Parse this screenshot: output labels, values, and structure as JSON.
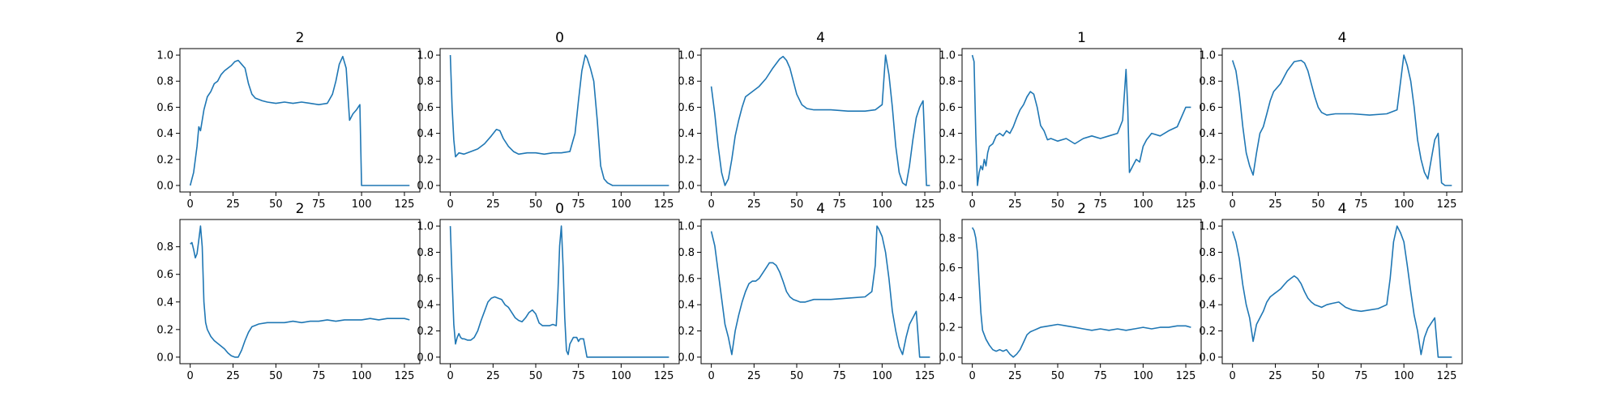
{
  "line_color": "#1f77b4",
  "chart_data": [
    {
      "type": "line",
      "title": "2",
      "xlim": [
        -6,
        134
      ],
      "ylim": [
        -0.05,
        1.05
      ],
      "xticks": [
        0,
        25,
        50,
        75,
        100,
        125
      ],
      "yticks": [
        0.0,
        0.2,
        0.4,
        0.6,
        0.8,
        1.0
      ],
      "x": [
        0,
        2,
        4,
        5,
        6,
        7,
        8,
        10,
        12,
        14,
        16,
        18,
        20,
        22,
        24,
        26,
        28,
        30,
        32,
        34,
        36,
        38,
        40,
        42,
        45,
        50,
        55,
        60,
        65,
        70,
        75,
        80,
        83,
        85,
        87,
        89,
        91,
        93,
        95,
        97,
        98,
        99,
        100,
        110,
        128
      ],
      "y": [
        0.0,
        0.1,
        0.3,
        0.45,
        0.42,
        0.5,
        0.58,
        0.68,
        0.72,
        0.78,
        0.8,
        0.85,
        0.88,
        0.9,
        0.92,
        0.95,
        0.96,
        0.93,
        0.9,
        0.78,
        0.7,
        0.67,
        0.66,
        0.65,
        0.64,
        0.63,
        0.64,
        0.63,
        0.64,
        0.63,
        0.62,
        0.63,
        0.7,
        0.8,
        0.93,
        0.99,
        0.9,
        0.5,
        0.55,
        0.58,
        0.6,
        0.62,
        0.0,
        0.0,
        0.0
      ]
    },
    {
      "type": "line",
      "title": "0",
      "xlim": [
        -6,
        134
      ],
      "ylim": [
        -0.05,
        1.05
      ],
      "xticks": [
        0,
        25,
        50,
        75,
        100,
        125
      ],
      "yticks": [
        0.0,
        0.2,
        0.4,
        0.6,
        0.8,
        1.0
      ],
      "x": [
        0,
        1,
        2,
        3,
        5,
        8,
        12,
        16,
        20,
        24,
        27,
        29,
        31,
        34,
        37,
        40,
        45,
        50,
        55,
        60,
        65,
        70,
        73,
        75,
        77,
        79,
        80,
        82,
        84,
        86,
        88,
        90,
        92,
        95,
        100,
        128
      ],
      "y": [
        1.0,
        0.6,
        0.35,
        0.22,
        0.25,
        0.24,
        0.26,
        0.28,
        0.32,
        0.38,
        0.43,
        0.42,
        0.36,
        0.3,
        0.26,
        0.24,
        0.25,
        0.25,
        0.24,
        0.25,
        0.25,
        0.26,
        0.4,
        0.65,
        0.88,
        1.0,
        0.98,
        0.9,
        0.8,
        0.5,
        0.15,
        0.05,
        0.02,
        0.0,
        0.0,
        0.0
      ]
    },
    {
      "type": "line",
      "title": "4",
      "xlim": [
        -6,
        134
      ],
      "ylim": [
        -0.05,
        1.05
      ],
      "xticks": [
        0,
        25,
        50,
        75,
        100,
        125
      ],
      "yticks": [
        0.0,
        0.2,
        0.4,
        0.6,
        0.8,
        1.0
      ],
      "x": [
        0,
        2,
        4,
        6,
        8,
        10,
        12,
        14,
        16,
        18,
        20,
        24,
        28,
        32,
        36,
        40,
        42,
        44,
        46,
        48,
        50,
        53,
        56,
        60,
        70,
        80,
        90,
        96,
        100,
        102,
        104,
        106,
        108,
        110,
        112,
        114,
        116,
        118,
        120,
        122,
        124,
        126,
        128
      ],
      "y": [
        0.76,
        0.55,
        0.3,
        0.1,
        0.0,
        0.05,
        0.2,
        0.38,
        0.5,
        0.6,
        0.68,
        0.72,
        0.76,
        0.82,
        0.9,
        0.97,
        0.99,
        0.96,
        0.9,
        0.8,
        0.7,
        0.62,
        0.59,
        0.58,
        0.58,
        0.57,
        0.57,
        0.58,
        0.62,
        1.0,
        0.85,
        0.6,
        0.3,
        0.1,
        0.02,
        0.0,
        0.15,
        0.35,
        0.52,
        0.6,
        0.65,
        0.0,
        0.0
      ]
    },
    {
      "type": "line",
      "title": "1",
      "xlim": [
        -6,
        134
      ],
      "ylim": [
        -0.05,
        1.05
      ],
      "xticks": [
        0,
        25,
        50,
        75,
        100,
        125
      ],
      "yticks": [
        0.0,
        0.2,
        0.4,
        0.6,
        0.8,
        1.0
      ],
      "x": [
        0,
        1,
        2,
        3,
        4,
        5,
        6,
        7,
        8,
        9,
        10,
        12,
        14,
        16,
        18,
        20,
        22,
        24,
        26,
        28,
        30,
        32,
        34,
        36,
        38,
        40,
        42,
        44,
        46,
        50,
        55,
        60,
        65,
        70,
        75,
        80,
        85,
        88,
        90,
        91,
        92,
        94,
        96,
        98,
        100,
        102,
        105,
        110,
        115,
        120,
        125,
        128
      ],
      "y": [
        1.0,
        0.95,
        0.4,
        0.0,
        0.1,
        0.15,
        0.12,
        0.2,
        0.15,
        0.25,
        0.3,
        0.32,
        0.38,
        0.4,
        0.38,
        0.42,
        0.4,
        0.45,
        0.52,
        0.58,
        0.62,
        0.68,
        0.72,
        0.7,
        0.6,
        0.46,
        0.42,
        0.35,
        0.36,
        0.34,
        0.36,
        0.32,
        0.36,
        0.38,
        0.36,
        0.38,
        0.4,
        0.5,
        0.89,
        0.6,
        0.1,
        0.15,
        0.2,
        0.18,
        0.3,
        0.35,
        0.4,
        0.38,
        0.42,
        0.45,
        0.6,
        0.6
      ]
    },
    {
      "type": "line",
      "title": "4",
      "xlim": [
        -6,
        134
      ],
      "ylim": [
        -0.05,
        1.05
      ],
      "xticks": [
        0,
        25,
        50,
        75,
        100,
        125
      ],
      "yticks": [
        0.0,
        0.2,
        0.4,
        0.6,
        0.8,
        1.0
      ],
      "x": [
        0,
        2,
        4,
        6,
        8,
        10,
        12,
        14,
        16,
        18,
        20,
        22,
        24,
        28,
        32,
        36,
        40,
        42,
        44,
        46,
        48,
        50,
        52,
        55,
        60,
        70,
        80,
        90,
        96,
        100,
        102,
        104,
        106,
        108,
        110,
        112,
        114,
        116,
        118,
        120,
        122,
        124,
        126,
        128
      ],
      "y": [
        0.96,
        0.88,
        0.7,
        0.45,
        0.25,
        0.15,
        0.08,
        0.25,
        0.4,
        0.45,
        0.55,
        0.65,
        0.72,
        0.78,
        0.88,
        0.95,
        0.96,
        0.94,
        0.88,
        0.78,
        0.68,
        0.6,
        0.56,
        0.54,
        0.55,
        0.55,
        0.54,
        0.55,
        0.58,
        1.0,
        0.92,
        0.8,
        0.6,
        0.35,
        0.2,
        0.1,
        0.05,
        0.2,
        0.35,
        0.4,
        0.02,
        0.0,
        0.0,
        0.0
      ]
    },
    {
      "type": "line",
      "title": "2",
      "xlim": [
        -6,
        134
      ],
      "ylim": [
        -0.0475,
        0.9975
      ],
      "xticks": [
        0,
        25,
        50,
        75,
        100,
        125
      ],
      "yticks": [
        0.0,
        0.2,
        0.4,
        0.6,
        0.8
      ],
      "x": [
        0,
        1,
        2,
        3,
        4,
        5,
        6,
        7,
        8,
        9,
        10,
        12,
        14,
        16,
        18,
        20,
        22,
        24,
        26,
        28,
        30,
        32,
        34,
        36,
        38,
        40,
        45,
        50,
        55,
        60,
        65,
        70,
        75,
        80,
        85,
        90,
        95,
        100,
        105,
        110,
        115,
        120,
        125,
        128
      ],
      "y": [
        0.82,
        0.83,
        0.78,
        0.72,
        0.75,
        0.85,
        0.95,
        0.8,
        0.4,
        0.25,
        0.2,
        0.15,
        0.12,
        0.1,
        0.08,
        0.06,
        0.03,
        0.01,
        0.0,
        0.0,
        0.05,
        0.12,
        0.18,
        0.22,
        0.23,
        0.24,
        0.25,
        0.25,
        0.25,
        0.26,
        0.25,
        0.26,
        0.26,
        0.27,
        0.26,
        0.27,
        0.27,
        0.27,
        0.28,
        0.27,
        0.28,
        0.28,
        0.28,
        0.27
      ]
    },
    {
      "type": "line",
      "title": "0",
      "xlim": [
        -6,
        134
      ],
      "ylim": [
        -0.05,
        1.05
      ],
      "xticks": [
        0,
        25,
        50,
        75,
        100,
        125
      ],
      "yticks": [
        0.0,
        0.2,
        0.4,
        0.6,
        0.8,
        1.0
      ],
      "x": [
        0,
        1,
        2,
        3,
        4,
        5,
        6,
        7,
        8,
        10,
        12,
        14,
        16,
        18,
        20,
        22,
        24,
        26,
        28,
        30,
        32,
        34,
        36,
        38,
        40,
        42,
        44,
        46,
        48,
        50,
        52,
        54,
        56,
        58,
        60,
        62,
        63,
        64,
        65,
        66,
        67,
        68,
        69,
        70,
        72,
        74,
        75,
        76,
        78,
        80,
        100,
        128
      ],
      "y": [
        1.0,
        0.6,
        0.25,
        0.1,
        0.15,
        0.18,
        0.15,
        0.14,
        0.14,
        0.13,
        0.13,
        0.15,
        0.2,
        0.28,
        0.35,
        0.42,
        0.45,
        0.46,
        0.45,
        0.44,
        0.4,
        0.38,
        0.34,
        0.3,
        0.28,
        0.27,
        0.3,
        0.34,
        0.36,
        0.33,
        0.26,
        0.24,
        0.24,
        0.24,
        0.25,
        0.24,
        0.5,
        0.85,
        1.0,
        0.7,
        0.3,
        0.05,
        0.02,
        0.1,
        0.15,
        0.15,
        0.12,
        0.14,
        0.14,
        0.0,
        0.0,
        0.0
      ]
    },
    {
      "type": "line",
      "title": "4",
      "xlim": [
        -6,
        134
      ],
      "ylim": [
        -0.05,
        1.05
      ],
      "xticks": [
        0,
        25,
        50,
        75,
        100,
        125
      ],
      "yticks": [
        0.0,
        0.2,
        0.4,
        0.6,
        0.8,
        1.0
      ],
      "x": [
        0,
        2,
        4,
        6,
        8,
        10,
        12,
        14,
        16,
        18,
        20,
        22,
        24,
        26,
        28,
        30,
        32,
        34,
        36,
        38,
        40,
        42,
        44,
        46,
        48,
        50,
        52,
        55,
        60,
        70,
        80,
        90,
        94,
        96,
        97,
        98,
        100,
        102,
        104,
        106,
        108,
        110,
        112,
        114,
        116,
        118,
        120,
        122,
        124,
        126,
        128
      ],
      "y": [
        0.96,
        0.85,
        0.65,
        0.45,
        0.25,
        0.15,
        0.02,
        0.2,
        0.32,
        0.42,
        0.5,
        0.56,
        0.58,
        0.58,
        0.6,
        0.64,
        0.68,
        0.72,
        0.72,
        0.7,
        0.65,
        0.58,
        0.5,
        0.46,
        0.44,
        0.43,
        0.42,
        0.42,
        0.44,
        0.44,
        0.45,
        0.46,
        0.5,
        0.7,
        1.0,
        0.98,
        0.92,
        0.8,
        0.6,
        0.35,
        0.2,
        0.08,
        0.02,
        0.15,
        0.25,
        0.3,
        0.35,
        0.0,
        0.0,
        0.0,
        0.0
      ]
    },
    {
      "type": "line",
      "title": "2",
      "xlim": [
        -6,
        134
      ],
      "ylim": [
        -0.044,
        0.924
      ],
      "xticks": [
        0,
        25,
        50,
        75,
        100,
        125
      ],
      "yticks": [
        0.0,
        0.2,
        0.4,
        0.6,
        0.8
      ],
      "x": [
        0,
        1,
        2,
        3,
        4,
        5,
        6,
        7,
        8,
        10,
        12,
        14,
        16,
        18,
        20,
        22,
        24,
        26,
        28,
        30,
        32,
        34,
        36,
        38,
        40,
        45,
        50,
        55,
        60,
        65,
        70,
        75,
        80,
        85,
        90,
        95,
        100,
        105,
        110,
        115,
        120,
        125,
        128
      ],
      "y": [
        0.87,
        0.85,
        0.8,
        0.7,
        0.5,
        0.3,
        0.18,
        0.15,
        0.12,
        0.08,
        0.05,
        0.04,
        0.05,
        0.04,
        0.05,
        0.02,
        0.0,
        0.02,
        0.05,
        0.1,
        0.15,
        0.17,
        0.18,
        0.19,
        0.2,
        0.21,
        0.22,
        0.21,
        0.2,
        0.19,
        0.18,
        0.19,
        0.18,
        0.19,
        0.18,
        0.19,
        0.2,
        0.19,
        0.2,
        0.2,
        0.21,
        0.21,
        0.2
      ]
    },
    {
      "type": "line",
      "title": "4",
      "xlim": [
        -6,
        134
      ],
      "ylim": [
        -0.05,
        1.05
      ],
      "xticks": [
        0,
        25,
        50,
        75,
        100,
        125
      ],
      "yticks": [
        0.0,
        0.2,
        0.4,
        0.6,
        0.8,
        1.0
      ],
      "x": [
        0,
        2,
        4,
        6,
        8,
        10,
        12,
        14,
        16,
        18,
        20,
        22,
        24,
        26,
        28,
        30,
        32,
        34,
        36,
        38,
        40,
        42,
        44,
        46,
        48,
        50,
        52,
        55,
        58,
        62,
        66,
        70,
        75,
        80,
        85,
        90,
        92,
        94,
        96,
        98,
        100,
        102,
        104,
        106,
        108,
        110,
        112,
        114,
        116,
        118,
        120,
        122,
        124,
        126,
        128
      ],
      "y": [
        0.96,
        0.88,
        0.75,
        0.55,
        0.4,
        0.3,
        0.12,
        0.25,
        0.3,
        0.35,
        0.42,
        0.46,
        0.48,
        0.5,
        0.52,
        0.55,
        0.58,
        0.6,
        0.62,
        0.6,
        0.56,
        0.5,
        0.45,
        0.42,
        0.4,
        0.39,
        0.38,
        0.4,
        0.41,
        0.42,
        0.38,
        0.36,
        0.35,
        0.36,
        0.37,
        0.4,
        0.6,
        0.88,
        1.0,
        0.95,
        0.88,
        0.7,
        0.5,
        0.32,
        0.2,
        0.02,
        0.15,
        0.22,
        0.26,
        0.3,
        0.0,
        0.0,
        0.0,
        0.0,
        0.0
      ]
    }
  ]
}
